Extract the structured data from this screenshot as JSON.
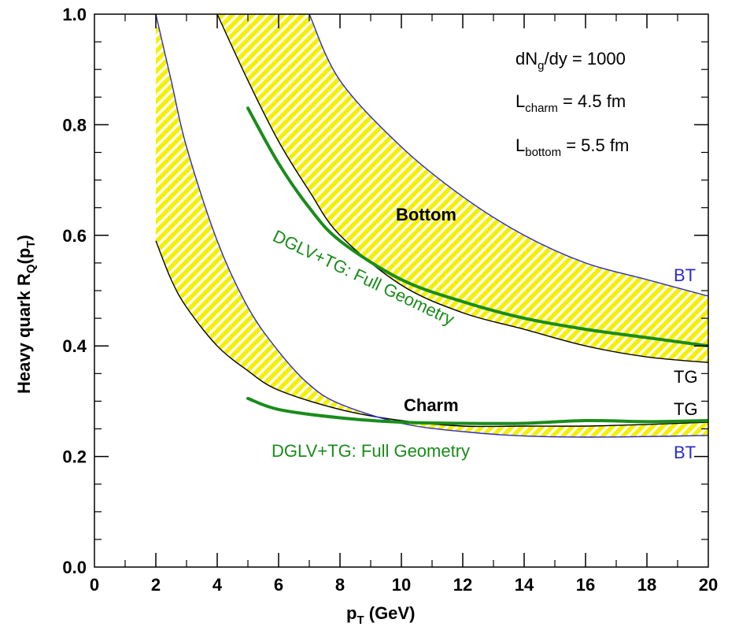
{
  "chart_data": {
    "type": "line",
    "title": "",
    "xlabel_main": "p",
    "xlabel_sub": "T",
    "xlabel_rest": " (GeV)",
    "ylabel_main": "Heavy quark R",
    "ylabel_sub1": "Q",
    "ylabel_mid": "(p",
    "ylabel_sub2": "T",
    "ylabel_end": ")",
    "xlim": [
      0,
      20
    ],
    "ylim": [
      0,
      1.0
    ],
    "x_ticks": [
      "0",
      "2",
      "4",
      "6",
      "8",
      "10",
      "12",
      "14",
      "16",
      "18",
      "20"
    ],
    "y_ticks": [
      "0.0",
      "0.2",
      "0.4",
      "0.6",
      "0.8",
      "1.0"
    ],
    "bands": [
      {
        "name": "Bottom",
        "upper_name": "BT",
        "lower_name": "TG",
        "upper": [
          [
            7,
            1.0
          ],
          [
            8,
            0.88
          ],
          [
            10,
            0.76
          ],
          [
            12,
            0.67
          ],
          [
            14,
            0.6
          ],
          [
            16,
            0.55
          ],
          [
            18,
            0.52
          ],
          [
            20,
            0.49
          ]
        ],
        "lower": [
          [
            4,
            1.0
          ],
          [
            5,
            0.88
          ],
          [
            6,
            0.77
          ],
          [
            7,
            0.68
          ],
          [
            8,
            0.6
          ],
          [
            10,
            0.51
          ],
          [
            12,
            0.46
          ],
          [
            14,
            0.43
          ],
          [
            16,
            0.4
          ],
          [
            18,
            0.38
          ],
          [
            20,
            0.37
          ]
        ]
      },
      {
        "name": "Charm",
        "upper_name": "TG",
        "lower_name": "BT",
        "upper": [
          [
            2,
            0.59
          ],
          [
            2.5,
            0.52
          ],
          [
            3,
            0.47
          ],
          [
            4,
            0.4
          ],
          [
            5,
            0.355
          ],
          [
            6,
            0.32
          ],
          [
            8,
            0.285
          ],
          [
            10,
            0.265
          ],
          [
            12,
            0.255
          ],
          [
            14,
            0.255
          ],
          [
            16,
            0.255
          ],
          [
            18,
            0.258
          ],
          [
            20,
            0.262
          ]
        ],
        "lower": [
          [
            2,
            1.0
          ],
          [
            2.5,
            0.88
          ],
          [
            3,
            0.76
          ],
          [
            4,
            0.59
          ],
          [
            5,
            0.47
          ],
          [
            6,
            0.39
          ],
          [
            7,
            0.33
          ],
          [
            8,
            0.295
          ],
          [
            10,
            0.26
          ],
          [
            12,
            0.245
          ],
          [
            14,
            0.237
          ],
          [
            16,
            0.235
          ],
          [
            18,
            0.236
          ],
          [
            20,
            0.238
          ]
        ],
        "fill_extra": [
          [
            2,
            0.59
          ],
          [
            2,
            1.0
          ]
        ]
      }
    ],
    "series": [
      {
        "name": "DGLV+TG: Full Geometry (Bottom)",
        "color": "#1a8c1a",
        "points": [
          [
            5,
            0.83
          ],
          [
            6,
            0.73
          ],
          [
            7,
            0.65
          ],
          [
            8,
            0.59
          ],
          [
            10,
            0.52
          ],
          [
            12,
            0.48
          ],
          [
            14,
            0.45
          ],
          [
            16,
            0.43
          ],
          [
            18,
            0.415
          ],
          [
            20,
            0.4
          ]
        ]
      },
      {
        "name": "DGLV+TG: Full Geometry (Charm)",
        "color": "#1a8c1a",
        "points": [
          [
            5,
            0.305
          ],
          [
            6,
            0.285
          ],
          [
            8,
            0.27
          ],
          [
            10,
            0.262
          ],
          [
            12,
            0.26
          ],
          [
            14,
            0.26
          ],
          [
            16,
            0.265
          ],
          [
            18,
            0.263
          ],
          [
            20,
            0.265
          ]
        ]
      }
    ],
    "annotations": {
      "bottom_label": "Bottom",
      "charm_label": "Charm",
      "bottom_dglv": "DGLV+TG: Full Geometry",
      "charm_dglv": "DGLV+TG: Full Geometry",
      "bt_top": "BT",
      "tg_top": "TG",
      "tg_bottom": "TG",
      "bt_bottom": "BT"
    },
    "params": {
      "line1_a": "dN",
      "line1_sub": "g",
      "line1_b": "/dy = 1000",
      "line2_a": "L",
      "line2_sub": "charm",
      "line2_b": " = 4.5 fm",
      "line3_a": "L",
      "line3_sub": "bottom",
      "line3_b": " = 5.5 fm"
    },
    "colors": {
      "band_yellow": "#f4f000",
      "band_stripe": "#ffffff",
      "bt_line": "#2b2bcc",
      "tg_line": "#000000",
      "dglv": "#1a8c1a"
    }
  }
}
